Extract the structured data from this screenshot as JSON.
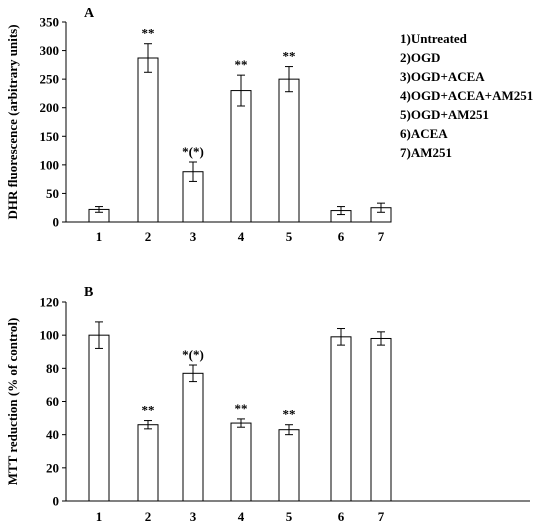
{
  "chart_data": [
    {
      "type": "bar",
      "panel": "A",
      "ylabel": "DHR fluorescence (arbitrary units)",
      "xlabel": "",
      "categories": [
        "1",
        "2",
        "3",
        "4",
        "5",
        "6",
        "7"
      ],
      "values": [
        22,
        287,
        88,
        230,
        250,
        20,
        25
      ],
      "errors": [
        5,
        25,
        17,
        27,
        22,
        7,
        8
      ],
      "significance": [
        "",
        "**",
        "*(*)",
        "**",
        "**",
        "",
        ""
      ],
      "ylim": [
        0,
        350
      ],
      "yticks": [
        0,
        50,
        100,
        150,
        200,
        250,
        300,
        350
      ],
      "grid": false,
      "bar_fill": "#ffffff",
      "bar_stroke": "#000000",
      "legend_placement": "top-right",
      "legend": [
        "1)Untreated",
        "2)OGD",
        "3)OGD+ACEA",
        "4)OGD+ACEA+AM251",
        "5)OGD+AM251",
        "6)ACEA",
        "7)AM251"
      ]
    },
    {
      "type": "bar",
      "panel": "B",
      "ylabel": "MTT reduction (% of control)",
      "xlabel": "",
      "categories": [
        "1",
        "2",
        "3",
        "4",
        "5",
        "6",
        "7"
      ],
      "values": [
        100,
        46,
        77,
        47,
        43,
        99,
        98
      ],
      "errors": [
        8,
        2.5,
        5,
        2.5,
        3,
        5,
        4
      ],
      "significance": [
        "",
        "**",
        "*(*)",
        "**",
        "**",
        "",
        ""
      ],
      "ylim": [
        0,
        120
      ],
      "yticks": [
        0,
        20,
        40,
        60,
        80,
        100,
        120
      ],
      "grid": false,
      "bar_fill": "#ffffff",
      "bar_stroke": "#000000"
    }
  ]
}
